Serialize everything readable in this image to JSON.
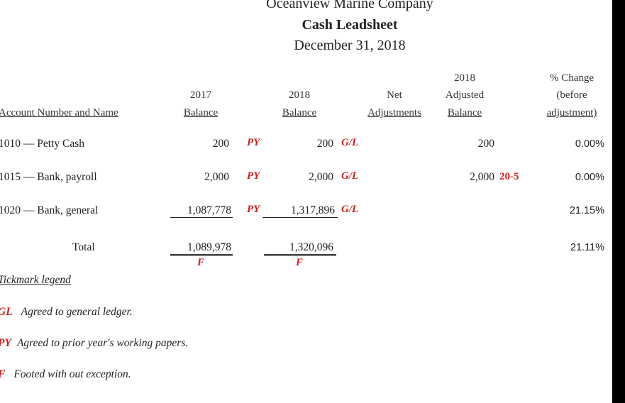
{
  "header": {
    "company": "Oceanview Marine Company",
    "title": "Cash Leadsheet",
    "date": "December 31, 2018"
  },
  "columns": {
    "account": "Account Number and Name",
    "balance_2017": {
      "year": "2017",
      "label": "Balance"
    },
    "balance_2018": {
      "year": "2018",
      "label": "Balance"
    },
    "net_adj": {
      "line1": "Net",
      "label": "Adjustments"
    },
    "adjusted": {
      "year": "2018",
      "line2": "Adjusted",
      "label": "Balance"
    },
    "pct": {
      "line1": "% Change",
      "line2": "(before",
      "label": "adjustment)"
    }
  },
  "rows": [
    {
      "account": "1010 — Petty Cash",
      "b2017": "200",
      "tick1": "PY",
      "b2018": "200",
      "tick2": "G/L",
      "adjusted": "200",
      "adj_ref": "",
      "pct": "0.00%"
    },
    {
      "account": "1015 — Bank, payroll",
      "b2017": "2,000",
      "tick1": "PY",
      "b2018": "2,000",
      "tick2": "G/L",
      "adjusted": "2,000",
      "adj_ref": "20-5",
      "pct": "0.00%"
    },
    {
      "account": "1020 — Bank, general",
      "b2017": "1,087,778",
      "tick1": "PY",
      "b2018": "1,317,896",
      "tick2": "G/L",
      "adjusted": "",
      "adj_ref": "",
      "pct": "21.15%"
    }
  ],
  "total": {
    "label": "Total",
    "b2017": "1,089,978",
    "b2018": "1,320,096",
    "foot_tick_2017": "F",
    "foot_tick_2018": "F",
    "pct": "21.11%"
  },
  "legend": {
    "heading": "Tickmark legend",
    "items": [
      {
        "code": "GL",
        "text": "Agreed to general ledger."
      },
      {
        "code": "PY",
        "text": "Agreed to prior year's working papers."
      },
      {
        "code": "F",
        "text": "Footed with out exception."
      }
    ]
  },
  "colors": {
    "tickmark": "#cc1f1f",
    "right_bar": "#000000"
  }
}
